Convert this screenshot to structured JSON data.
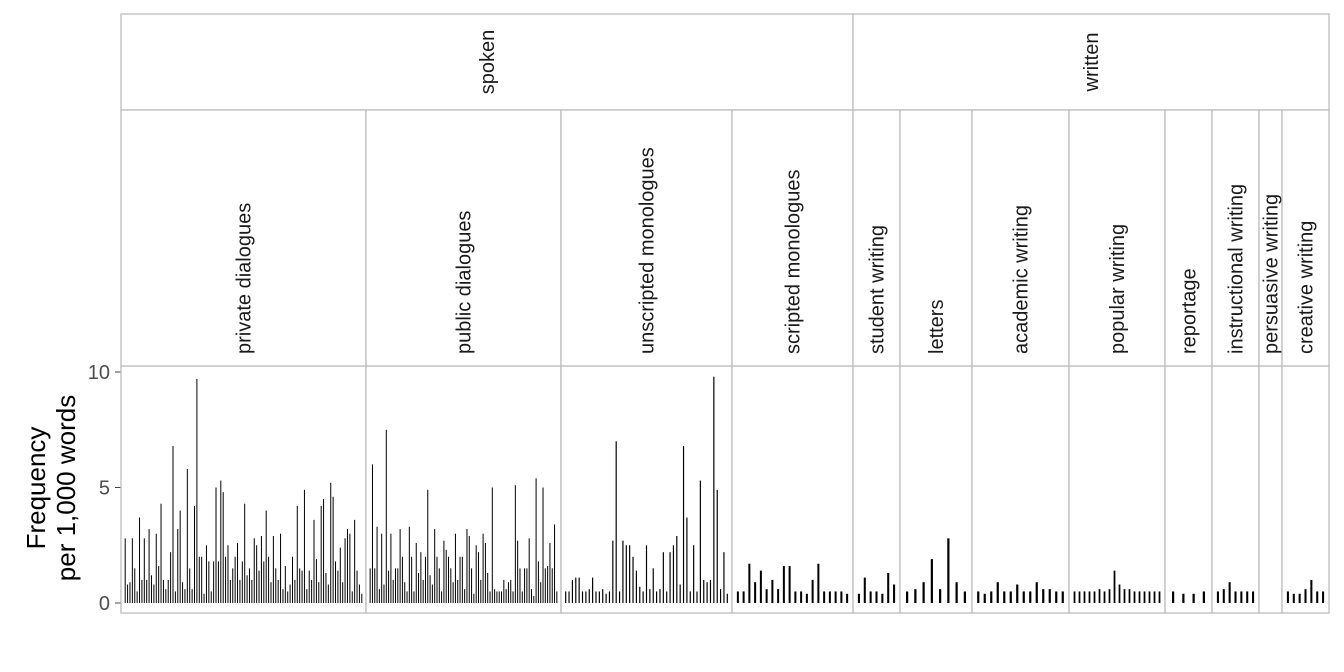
{
  "chart_data": {
    "type": "bar",
    "ylabel": [
      "Frequency",
      "per 1,000 words"
    ],
    "ylim": [
      0,
      10.5
    ],
    "yticks": [
      0,
      5,
      10
    ],
    "grid": false,
    "groups": [
      {
        "mode": "spoken",
        "panels": [
          {
            "name": "private dialogues",
            "values": [
              2.8,
              0.8,
              0.9,
              2.8,
              1.5,
              0.5,
              3.7,
              1.0,
              2.8,
              1.0,
              3.2,
              1.2,
              0.8,
              3.0,
              1.6,
              4.3,
              1.0,
              0.6,
              1.0,
              2.2,
              6.8,
              0.5,
              3.2,
              4.0,
              0.9,
              0.6,
              5.8,
              1.5,
              0.6,
              4.2,
              9.7,
              2.0,
              2.0,
              0.4,
              2.5,
              1.8,
              0.5,
              1.8,
              5.0,
              1.8,
              5.3,
              4.8,
              2.0,
              2.5,
              1.0,
              1.5,
              2.0,
              2.6,
              1.0,
              1.8,
              4.3,
              1.2,
              1.5,
              1.0,
              2.8,
              2.5,
              1.4,
              2.9,
              1.8,
              4.0,
              2.0,
              0.9,
              2.9,
              1.5,
              1.0,
              3.0,
              0.6,
              1.6,
              0.5,
              0.8,
              2.0,
              1.0,
              4.2,
              1.5,
              1.4,
              4.9,
              0.6,
              1.4,
              1.0,
              3.6,
              1.9,
              0.9,
              4.2,
              4.5,
              1.3,
              0.8,
              5.2,
              4.6,
              1.8,
              1.4,
              2.4,
              0.9,
              2.8,
              3.2,
              3.0,
              0.5,
              3.6,
              1.4,
              0.8,
              0.4
            ]
          },
          {
            "name": "public dialogues",
            "values": [
              1.5,
              6.0,
              1.5,
              3.3,
              0.6,
              3.0,
              0.8,
              7.5,
              1.4,
              3.0,
              1.0,
              1.5,
              1.5,
              3.2,
              2.0,
              0.9,
              0.5,
              3.3,
              2.0,
              0.5,
              2.6,
              1.3,
              2.2,
              1.0,
              2.0,
              4.9,
              1.2,
              0.8,
              3.2,
              2.0,
              1.5,
              0.5,
              2.7,
              2.3,
              2.0,
              1.5,
              0.9,
              3.0,
              1.0,
              2.0,
              2.0,
              0.6,
              3.2,
              2.9,
              1.5,
              0.4,
              2.5,
              2.2,
              1.0,
              3.0,
              2.6,
              1.3,
              0.5,
              5.0,
              0.6,
              0.5,
              0.5,
              0.5,
              1.0,
              0.6,
              0.9,
              1.0,
              0.5,
              5.1,
              2.7,
              1.5,
              0.5,
              1.5,
              1.5,
              2.8,
              0.6,
              0.3,
              5.4,
              1.8,
              0.9,
              5.0,
              1.5,
              1.6,
              2.6,
              1.5,
              3.4,
              0.5
            ]
          },
          {
            "name": "unscripted monologues",
            "values": [
              0.5,
              0.5,
              1.0,
              1.1,
              1.1,
              0.5,
              0.5,
              0.6,
              1.1,
              0.5,
              0.5,
              0.6,
              0.4,
              0.5,
              2.7,
              7.0,
              0.5,
              2.7,
              2.5,
              2.5,
              2.0,
              1.4,
              0.7,
              0.5,
              2.5,
              0.6,
              1.5,
              0.5,
              0.6,
              2.2,
              0.5,
              2.2,
              2.5,
              2.9,
              0.8,
              6.8,
              3.7,
              0.5,
              2.5,
              0.5,
              5.3,
              1.0,
              0.9,
              1.0,
              9.8,
              4.9,
              0.6,
              2.2,
              0.4
            ]
          },
          {
            "name": "scripted monologues",
            "values": [
              0.5,
              0.5,
              1.7,
              0.9,
              1.4,
              0.6,
              1.0,
              0.6,
              1.6,
              1.6,
              0.5,
              0.5,
              0.4,
              1.0,
              1.7,
              0.5,
              0.5,
              0.5,
              0.5,
              0.4
            ]
          }
        ]
      },
      {
        "mode": "written",
        "panels": [
          {
            "name": "student writing",
            "values": [
              0.4,
              1.1,
              0.5,
              0.5,
              0.4,
              1.3,
              0.8
            ]
          },
          {
            "name": "letters",
            "values": [
              0.5,
              0.6,
              0.9,
              1.9,
              0.6,
              2.8,
              0.9,
              0.5
            ]
          },
          {
            "name": "academic writing",
            "values": [
              0.5,
              0.4,
              0.5,
              0.9,
              0.5,
              0.5,
              0.8,
              0.5,
              0.5,
              0.9,
              0.6,
              0.6,
              0.5,
              0.5
            ]
          },
          {
            "name": "popular writing",
            "values": [
              0.5,
              0.5,
              0.5,
              0.5,
              0.5,
              0.6,
              0.5,
              0.6,
              1.4,
              0.8,
              0.6,
              0.6,
              0.5,
              0.5,
              0.5,
              0.5,
              0.5,
              0.5
            ]
          },
          {
            "name": "reportage",
            "values": [
              0.5,
              0.4,
              0.4,
              0.5
            ]
          },
          {
            "name": "instructional writing",
            "values": [
              0.5,
              0.6,
              0.9,
              0.5,
              0.5,
              0.5,
              0.5
            ]
          },
          {
            "name": "persuasive writing",
            "values": []
          },
          {
            "name": "creative writing",
            "values": [
              0.5,
              0.4,
              0.4,
              0.6,
              1.0,
              0.5,
              0.5
            ]
          }
        ]
      }
    ]
  }
}
